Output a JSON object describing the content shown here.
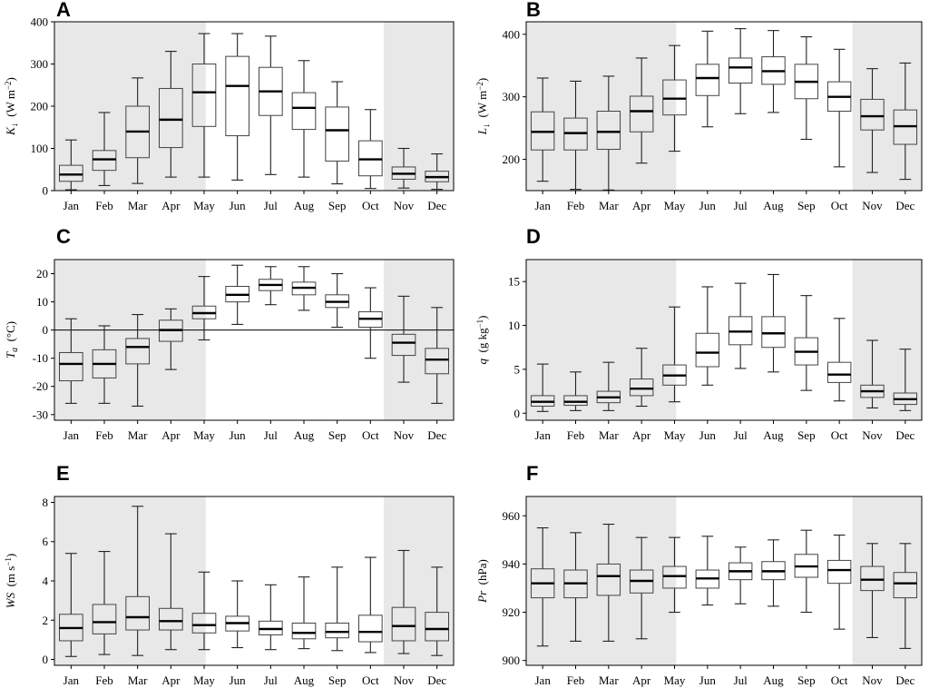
{
  "chart_data": [
    {
      "type": "box",
      "panel": "A",
      "ylabel": {
        "parts": [
          [
            "K",
            "it"
          ],
          [
            "↓",
            "sub"
          ],
          [
            "  (W m",
            ""
          ],
          [
            "−2",
            "sup"
          ],
          [
            ")",
            ""
          ]
        ]
      },
      "ylim": [
        0,
        400
      ],
      "yticks": [
        0,
        100,
        200,
        300,
        400
      ],
      "categories": [
        "Jan",
        "Feb",
        "Mar",
        "Apr",
        "May",
        "Jun",
        "Jul",
        "Aug",
        "Sep",
        "Oct",
        "Nov",
        "Dec"
      ],
      "shaded_months": {
        "left": [
          "Jan",
          "Feb",
          "Mar",
          "Apr"
        ],
        "right": [
          "Nov",
          "Dec"
        ]
      },
      "zero_line": false,
      "boxes": [
        {
          "min": 2,
          "q1": 22,
          "median": 38,
          "q3": 60,
          "max": 120
        },
        {
          "min": 12,
          "q1": 48,
          "median": 74,
          "q3": 95,
          "max": 185
        },
        {
          "min": 17,
          "q1": 78,
          "median": 140,
          "q3": 200,
          "max": 267
        },
        {
          "min": 32,
          "q1": 102,
          "median": 168,
          "q3": 242,
          "max": 330
        },
        {
          "min": 32,
          "q1": 152,
          "median": 233,
          "q3": 300,
          "max": 372
        },
        {
          "min": 25,
          "q1": 130,
          "median": 248,
          "q3": 318,
          "max": 372
        },
        {
          "min": 38,
          "q1": 178,
          "median": 235,
          "q3": 292,
          "max": 366
        },
        {
          "min": 32,
          "q1": 145,
          "median": 196,
          "q3": 232,
          "max": 308
        },
        {
          "min": 16,
          "q1": 70,
          "median": 143,
          "q3": 198,
          "max": 258
        },
        {
          "min": 5,
          "q1": 35,
          "median": 74,
          "q3": 118,
          "max": 192
        },
        {
          "min": 6,
          "q1": 27,
          "median": 40,
          "q3": 56,
          "max": 100
        },
        {
          "min": 3,
          "q1": 21,
          "median": 32,
          "q3": 46,
          "max": 87
        }
      ]
    },
    {
      "type": "box",
      "panel": "B",
      "ylabel": {
        "parts": [
          [
            "L",
            "it"
          ],
          [
            "↓",
            "sub"
          ],
          [
            "  (W m",
            ""
          ],
          [
            "−2",
            "sup"
          ],
          [
            ")",
            ""
          ]
        ]
      },
      "ylim": [
        150,
        420
      ],
      "yticks": [
        200,
        300,
        400
      ],
      "categories": [
        "Jan",
        "Feb",
        "Mar",
        "Apr",
        "May",
        "Jun",
        "Jul",
        "Aug",
        "Sep",
        "Oct",
        "Nov",
        "Dec"
      ],
      "shaded_months": {
        "left": [
          "Jan",
          "Feb",
          "Mar",
          "Apr"
        ],
        "right": [
          "Nov",
          "Dec"
        ]
      },
      "zero_line": false,
      "boxes": [
        {
          "min": 165,
          "q1": 215,
          "median": 244,
          "q3": 276,
          "max": 330
        },
        {
          "min": 152,
          "q1": 215,
          "median": 242,
          "q3": 266,
          "max": 325
        },
        {
          "min": 151,
          "q1": 216,
          "median": 244,
          "q3": 277,
          "max": 333
        },
        {
          "min": 194,
          "q1": 244,
          "median": 277,
          "q3": 301,
          "max": 362
        },
        {
          "min": 213,
          "q1": 271,
          "median": 297,
          "q3": 327,
          "max": 382
        },
        {
          "min": 252,
          "q1": 302,
          "median": 330,
          "q3": 352,
          "max": 405
        },
        {
          "min": 273,
          "q1": 322,
          "median": 347,
          "q3": 362,
          "max": 409
        },
        {
          "min": 275,
          "q1": 320,
          "median": 341,
          "q3": 364,
          "max": 406
        },
        {
          "min": 232,
          "q1": 297,
          "median": 324,
          "q3": 352,
          "max": 396
        },
        {
          "min": 188,
          "q1": 277,
          "median": 300,
          "q3": 324,
          "max": 376
        },
        {
          "min": 179,
          "q1": 247,
          "median": 269,
          "q3": 296,
          "max": 345
        },
        {
          "min": 168,
          "q1": 224,
          "median": 253,
          "q3": 279,
          "max": 354
        }
      ]
    },
    {
      "type": "box",
      "panel": "C",
      "ylabel": {
        "parts": [
          [
            "T",
            "it"
          ],
          [
            "a",
            "subit"
          ],
          [
            "  (°C)",
            ""
          ]
        ]
      },
      "ylim": [
        -32,
        25
      ],
      "yticks": [
        -30,
        -20,
        -10,
        0,
        10,
        20
      ],
      "categories": [
        "Jan",
        "Feb",
        "Mar",
        "Apr",
        "May",
        "Jun",
        "Jul",
        "Aug",
        "Sep",
        "Oct",
        "Nov",
        "Dec"
      ],
      "shaded_months": {
        "left": [
          "Jan",
          "Feb",
          "Mar",
          "Apr"
        ],
        "right": [
          "Nov",
          "Dec"
        ]
      },
      "zero_line": true,
      "boxes": [
        {
          "min": -26,
          "q1": -18,
          "median": -12,
          "q3": -8,
          "max": 4
        },
        {
          "min": -26,
          "q1": -17,
          "median": -12,
          "q3": -7,
          "max": 1.5
        },
        {
          "min": -27,
          "q1": -12,
          "median": -6,
          "q3": -3,
          "max": 5.5
        },
        {
          "min": -14,
          "q1": -4,
          "median": 0,
          "q3": 3.5,
          "max": 7.5
        },
        {
          "min": -3.5,
          "q1": 4,
          "median": 6,
          "q3": 8.5,
          "max": 19
        },
        {
          "min": 2,
          "q1": 10,
          "median": 12.5,
          "q3": 15.5,
          "max": 23
        },
        {
          "min": 9,
          "q1": 14,
          "median": 16,
          "q3": 18,
          "max": 22.5
        },
        {
          "min": 7,
          "q1": 12.5,
          "median": 15,
          "q3": 17,
          "max": 22.5
        },
        {
          "min": 1,
          "q1": 8,
          "median": 10,
          "q3": 12.5,
          "max": 20
        },
        {
          "min": -10,
          "q1": 1,
          "median": 4,
          "q3": 6.5,
          "max": 15
        },
        {
          "min": -18.5,
          "q1": -9,
          "median": -4.5,
          "q3": -1.5,
          "max": 12
        },
        {
          "min": -26,
          "q1": -15.5,
          "median": -10.5,
          "q3": -6.5,
          "max": 8
        }
      ]
    },
    {
      "type": "box",
      "panel": "D",
      "ylabel": {
        "parts": [
          [
            "q",
            "it"
          ],
          [
            "  (g kg",
            ""
          ],
          [
            "−1",
            "sup"
          ],
          [
            ")",
            ""
          ]
        ]
      },
      "ylim": [
        -0.8,
        17.5
      ],
      "yticks": [
        0,
        5,
        10,
        15
      ],
      "categories": [
        "Jan",
        "Feb",
        "Mar",
        "Apr",
        "May",
        "Jun",
        "Jul",
        "Aug",
        "Sep",
        "Oct",
        "Nov",
        "Dec"
      ],
      "shaded_months": {
        "left": [
          "Jan",
          "Feb",
          "Mar",
          "Apr"
        ],
        "right": [
          "Nov",
          "Dec"
        ]
      },
      "zero_line": false,
      "boxes": [
        {
          "min": 0.2,
          "q1": 0.8,
          "median": 1.3,
          "q3": 2.0,
          "max": 5.6
        },
        {
          "min": 0.3,
          "q1": 0.9,
          "median": 1.3,
          "q3": 2.0,
          "max": 4.7
        },
        {
          "min": 0.3,
          "q1": 1.2,
          "median": 1.8,
          "q3": 2.5,
          "max": 5.8
        },
        {
          "min": 0.8,
          "q1": 2.0,
          "median": 2.8,
          "q3": 3.9,
          "max": 7.4
        },
        {
          "min": 1.3,
          "q1": 3.2,
          "median": 4.3,
          "q3": 5.5,
          "max": 12.1
        },
        {
          "min": 3.2,
          "q1": 5.3,
          "median": 6.9,
          "q3": 9.1,
          "max": 14.4
        },
        {
          "min": 5.1,
          "q1": 7.8,
          "median": 9.3,
          "q3": 11.0,
          "max": 14.8
        },
        {
          "min": 4.7,
          "q1": 7.5,
          "median": 9.1,
          "q3": 11.0,
          "max": 15.8
        },
        {
          "min": 2.6,
          "q1": 5.5,
          "median": 7.0,
          "q3": 8.6,
          "max": 13.4
        },
        {
          "min": 1.4,
          "q1": 3.5,
          "median": 4.4,
          "q3": 5.8,
          "max": 10.8
        },
        {
          "min": 0.6,
          "q1": 1.8,
          "median": 2.5,
          "q3": 3.2,
          "max": 8.3
        },
        {
          "min": 0.3,
          "q1": 1.0,
          "median": 1.6,
          "q3": 2.3,
          "max": 7.3
        }
      ]
    },
    {
      "type": "box",
      "panel": "E",
      "ylabel": {
        "parts": [
          [
            "WS",
            "it"
          ],
          [
            "  (m s",
            ""
          ],
          [
            "−1",
            "sup"
          ],
          [
            ")",
            ""
          ]
        ]
      },
      "ylim": [
        -0.3,
        8.3
      ],
      "yticks": [
        0,
        2,
        4,
        6,
        8
      ],
      "categories": [
        "Jan",
        "Feb",
        "Mar",
        "Apr",
        "May",
        "Jun",
        "Jul",
        "Aug",
        "Sep",
        "Oct",
        "Nov",
        "Dec"
      ],
      "shaded_months": {
        "left": [
          "Jan",
          "Feb",
          "Mar",
          "Apr"
        ],
        "right": [
          "Nov",
          "Dec"
        ]
      },
      "zero_line": false,
      "boxes": [
        {
          "min": 0.15,
          "q1": 0.95,
          "median": 1.6,
          "q3": 2.3,
          "max": 5.4
        },
        {
          "min": 0.25,
          "q1": 1.3,
          "median": 1.9,
          "q3": 2.8,
          "max": 5.5
        },
        {
          "min": 0.2,
          "q1": 1.5,
          "median": 2.15,
          "q3": 3.2,
          "max": 7.8
        },
        {
          "min": 0.5,
          "q1": 1.5,
          "median": 1.95,
          "q3": 2.6,
          "max": 6.4
        },
        {
          "min": 0.5,
          "q1": 1.35,
          "median": 1.75,
          "q3": 2.35,
          "max": 4.45
        },
        {
          "min": 0.6,
          "q1": 1.45,
          "median": 1.85,
          "q3": 2.2,
          "max": 4.0
        },
        {
          "min": 0.5,
          "q1": 1.25,
          "median": 1.55,
          "q3": 1.95,
          "max": 3.8
        },
        {
          "min": 0.55,
          "q1": 1.05,
          "median": 1.35,
          "q3": 1.85,
          "max": 4.2
        },
        {
          "min": 0.45,
          "q1": 1.1,
          "median": 1.4,
          "q3": 1.85,
          "max": 4.7
        },
        {
          "min": 0.35,
          "q1": 0.9,
          "median": 1.4,
          "q3": 2.25,
          "max": 5.2
        },
        {
          "min": 0.3,
          "q1": 0.95,
          "median": 1.7,
          "q3": 2.65,
          "max": 5.55
        },
        {
          "min": 0.2,
          "q1": 0.95,
          "median": 1.55,
          "q3": 2.4,
          "max": 4.7
        }
      ]
    },
    {
      "type": "box",
      "panel": "F",
      "ylabel": {
        "parts": [
          [
            "Pr",
            "it"
          ],
          [
            "  (hPa)",
            ""
          ]
        ]
      },
      "ylim": [
        898,
        968
      ],
      "yticks": [
        900,
        920,
        940,
        960
      ],
      "categories": [
        "Jan",
        "Feb",
        "Mar",
        "Apr",
        "May",
        "Jun",
        "Jul",
        "Aug",
        "Sep",
        "Oct",
        "Nov",
        "Dec"
      ],
      "shaded_months": {
        "left": [
          "Jan",
          "Feb",
          "Mar",
          "Apr"
        ],
        "right": [
          "Nov",
          "Dec"
        ]
      },
      "zero_line": false,
      "boxes": [
        {
          "min": 906,
          "q1": 926,
          "median": 932,
          "q3": 938,
          "max": 955
        },
        {
          "min": 908,
          "q1": 926,
          "median": 932,
          "q3": 937.5,
          "max": 953
        },
        {
          "min": 908,
          "q1": 927,
          "median": 935,
          "q3": 940,
          "max": 956.5
        },
        {
          "min": 909,
          "q1": 928,
          "median": 933,
          "q3": 937.5,
          "max": 951
        },
        {
          "min": 920,
          "q1": 930,
          "median": 935,
          "q3": 939,
          "max": 951
        },
        {
          "min": 923,
          "q1": 930,
          "median": 934,
          "q3": 937.5,
          "max": 951.5
        },
        {
          "min": 923.5,
          "q1": 933.5,
          "median": 937,
          "q3": 940.5,
          "max": 947
        },
        {
          "min": 922.5,
          "q1": 933.5,
          "median": 937,
          "q3": 941,
          "max": 950
        },
        {
          "min": 920,
          "q1": 934.5,
          "median": 939,
          "q3": 944,
          "max": 954
        },
        {
          "min": 913,
          "q1": 932,
          "median": 937.5,
          "q3": 941.5,
          "max": 952
        },
        {
          "min": 909.5,
          "q1": 929,
          "median": 933.5,
          "q3": 939,
          "max": 948.5
        },
        {
          "min": 905,
          "q1": 926,
          "median": 932,
          "q3": 936.5,
          "max": 948.5
        }
      ]
    }
  ]
}
